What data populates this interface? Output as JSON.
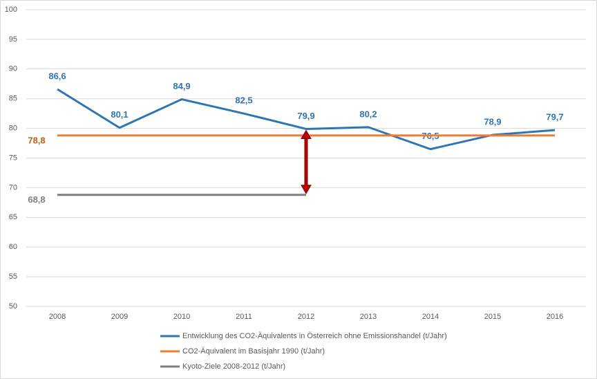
{
  "chart_data": {
    "type": "line",
    "categories": [
      "2008",
      "2009",
      "2010",
      "2011",
      "2012",
      "2013",
      "2014",
      "2015",
      "2016"
    ],
    "series": [
      {
        "name": "Entwicklung des CO2-Äquivalents in Österreich ohne Emissionshandel (t/Jahr)",
        "color": "#2e75b6",
        "values": [
          86.6,
          80.1,
          84.9,
          82.5,
          79.9,
          80.2,
          76.5,
          78.9,
          79.7
        ],
        "value_labels": [
          "86,6",
          "80,1",
          "84,9",
          "82,5",
          "79,9",
          "80,2",
          "76,5",
          "78,9",
          "79,7"
        ]
      },
      {
        "name": "CO2-Äquivalent im Basisjahr 1990 (t/Jahr)",
        "color": "#ed7d31",
        "values": [
          78.8,
          78.8,
          78.8,
          78.8,
          78.8,
          78.8,
          78.8,
          78.8,
          78.8
        ],
        "value_labels": [
          "78,8",
          null,
          null,
          null,
          null,
          null,
          null,
          null,
          null
        ]
      },
      {
        "name": "Kyoto-Ziele 2008-2012 (t/Jahr)",
        "color": "#7f7f7f",
        "values": [
          68.8,
          68.8,
          68.8,
          68.8,
          68.8,
          null,
          null,
          null,
          null
        ],
        "value_labels": [
          "68,8",
          null,
          null,
          null,
          null,
          null,
          null,
          null,
          null
        ]
      }
    ],
    "ylim": [
      50,
      100
    ],
    "yticks": [
      50,
      55,
      60,
      65,
      70,
      75,
      80,
      85,
      90,
      95,
      100
    ],
    "grid": true,
    "legend": "bottom"
  }
}
